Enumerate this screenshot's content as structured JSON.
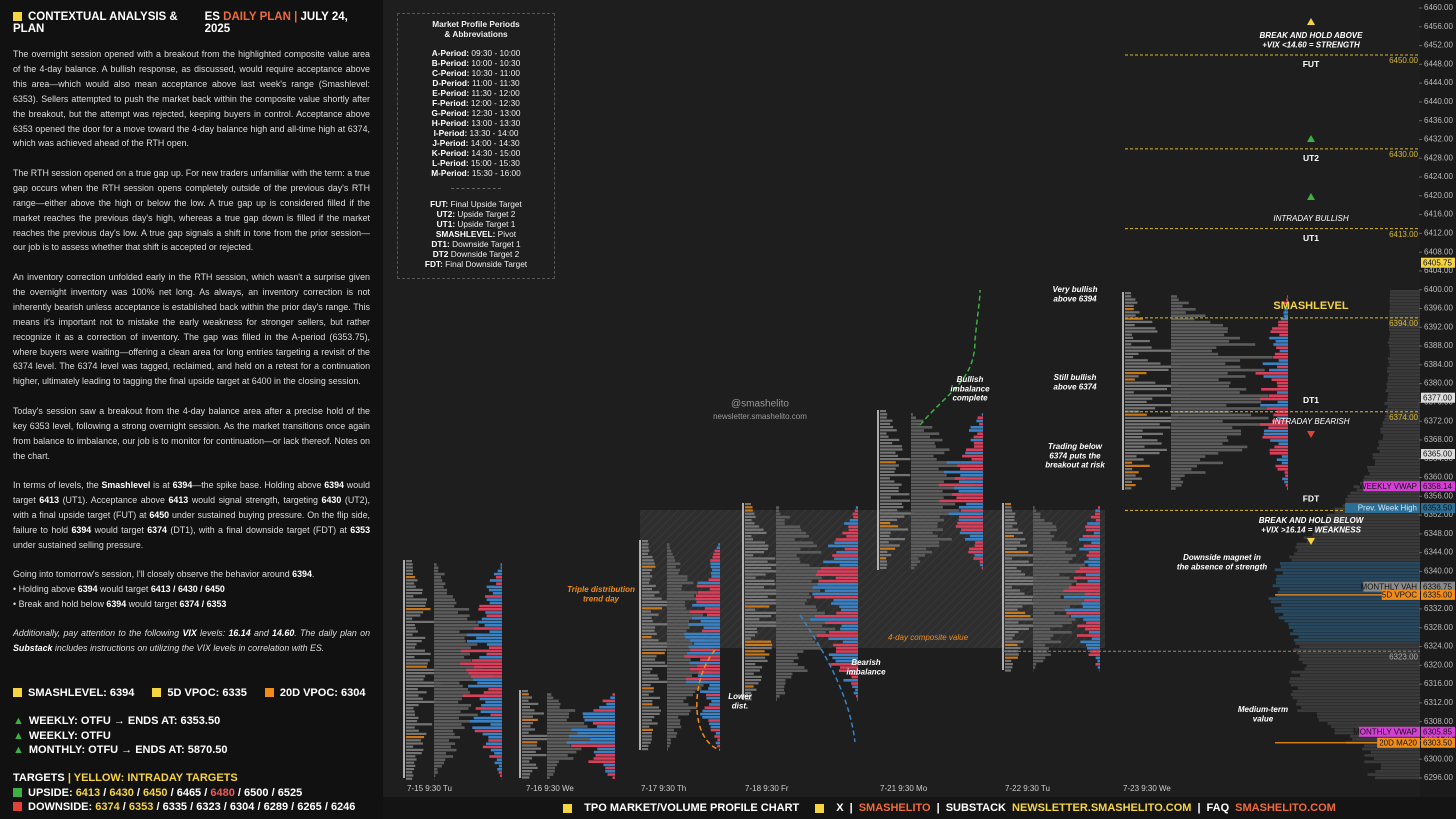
{
  "left_panel": {
    "header": {
      "title": "CONTEXTUAL ANALYSIS & PLAN",
      "instrument": "ES",
      "plan": "DAILY PLAN",
      "sep": "|",
      "date": "JULY 24, 2025"
    },
    "paragraphs": [
      [
        "The overnight session opened with a breakout from the highlighted composite value area of the 4-day balance. A bullish response, as discussed, would require acceptance above this area—which would also mean acceptance above last week's range (Smashlevel: 6353). Sellers attempted to push the market back within the composite value shortly after the breakout, but the attempt was rejected, keeping buyers in control. Acceptance above 6353 opened the door for a move toward the 4-day balance high and all-time high at 6374, which was achieved ahead of the RTH open."
      ],
      [
        "The RTH session opened on a true gap up. For new traders unfamiliar with the term: a true gap occurs when the RTH session opens completely outside of the previous day's RTH range—either above the high or below the low. A true gap up is considered filled if the market reaches the previous day's high, whereas a true gap down is filled if the market reaches the previous day's low. A true gap signals a shift in tone from the prior session—our job is to assess whether that shift is accepted or rejected."
      ],
      [
        "An inventory correction unfolded early in the RTH session, which wasn't a surprise given the overnight inventory was 100% net long. As always, an inventory correction is not inherently bearish unless acceptance is established back within the prior day's range. This means it's important not to mistake the early weakness for stronger sellers, but rather recognize it as a correction of inventory. The gap was filled in the A-period (6353.75), where buyers were waiting—offering a clean area for long entries targeting a revisit of the 6374 level. The 6374 level was tagged, reclaimed, and held on a retest for a continuation higher, ultimately leading to tagging the final upside target at 6400 in the closing session."
      ],
      [
        "Today's session saw a breakout from the 4-day balance area after a precise hold of the key 6353 level, following a strong overnight session. As the market transitions once again from balance to imbalance, our job is to monitor for continuation—or lack thereof. Notes on the chart."
      ],
      [
        "In terms of levels, the ",
        {
          "bold": "Smashlevel"
        },
        " is at ",
        {
          "bold": "6394"
        },
        "—the spike base. Holding above ",
        {
          "bold": "6394"
        },
        " would target ",
        {
          "bold": "6413"
        },
        " (UT1). Acceptance above ",
        {
          "bold": "6413"
        },
        " would signal strength, targeting ",
        {
          "bold": "6430"
        },
        " (UT2), with a final upside target (FUT) at ",
        {
          "bold": "6450"
        },
        " under sustained buying pressure. On the flip side, failure to hold ",
        {
          "bold": "6394"
        },
        " would target ",
        {
          "bold": "6374"
        },
        " (DT1), with a final downside target (FDT) at ",
        {
          "bold": "6353"
        },
        " under sustained selling pressure."
      ],
      [
        "Going into tomorrow's session, I'll closely observe the behavior around ",
        {
          "bold": "6394"
        },
        "."
      ]
    ],
    "bullets": [
      [
        "• Holding above ",
        {
          "bold": "6394"
        },
        " would target ",
        {
          "bold": "6413 / 6430 / 6450"
        }
      ],
      [
        "• Break and hold below ",
        {
          "bold": "6394"
        },
        " would target ",
        {
          "bold": "6374 / 6353"
        }
      ]
    ],
    "note": [
      "Additionally, pay attention to the following ",
      {
        "bold": "VIX"
      },
      " levels: ",
      {
        "bold": "16.14"
      },
      " and ",
      {
        "bold": "14.60"
      },
      ". The daily plan on ",
      {
        "bold": "Substack"
      },
      " includes instructions on utilizing the VIX levels in correlation with ES."
    ],
    "key_levels": [
      "SMASHLEVEL: 6394",
      "5D VPOC: 6335",
      "20D VPOC: 6304"
    ],
    "trend": [
      "WEEKLY: OTFU → ENDS AT: 6353.50",
      "WEEKLY: OTFU",
      "MONTHLY: OTFU → ENDS AT: 5870.50"
    ],
    "targets": {
      "title": "TARGETS",
      "sep": "|",
      "subtitle": "YELLOW: INTRADAY TARGETS",
      "slash": "/",
      "upside_label": "UPSIDE:",
      "upside": [
        {
          "text": "6413",
          "intraday": true
        },
        {
          "text": "6430",
          "intraday": true
        },
        {
          "text": "6450",
          "intraday": true
        },
        {
          "text": "6465"
        },
        {
          "text": "6480",
          "red": true
        },
        {
          "text": "6500"
        },
        {
          "text": "6525"
        }
      ],
      "downside_label": "DOWNSIDE:",
      "downside": [
        {
          "text": "6374",
          "intraday": true
        },
        {
          "text": "6353",
          "intraday": true
        },
        {
          "text": "6335"
        },
        {
          "text": "6323"
        },
        {
          "text": "6304"
        },
        {
          "text": "6289"
        },
        {
          "text": "6265"
        },
        {
          "text": "6246"
        }
      ]
    }
  },
  "legend_box": {
    "title": [
      "Market Profile Periods",
      "& Abbreviations"
    ],
    "periods": [
      [
        "A-Period:",
        "09:30 - 10:00"
      ],
      [
        "B-Period:",
        "10:00 - 10:30"
      ],
      [
        "C-Period:",
        "10:30 - 11:00"
      ],
      [
        "D-Period:",
        "11:00 - 11:30"
      ],
      [
        "E-Period:",
        "11:30 - 12:00"
      ],
      [
        "F-Period:",
        "12:00 - 12:30"
      ],
      [
        "G-Period:",
        "12:30 - 13:00"
      ],
      [
        "H-Period:",
        "13:00 - 13:30"
      ],
      [
        "I-Period:",
        "13:30 - 14:00"
      ],
      [
        "J-Period:",
        "14:00 - 14:30"
      ],
      [
        "K-Period:",
        "14:30 - 15:00"
      ],
      [
        "L-Period:",
        "15:00 - 15:30"
      ],
      [
        "M-Period:",
        "15:30 - 16:00"
      ]
    ],
    "abbreviations": [
      [
        "FUT:",
        "Final Upside Target"
      ],
      [
        "UT2:",
        "Upside Target 2"
      ],
      [
        "UT1:",
        "Upside Target 1"
      ],
      [
        "SMASHLEVEL:",
        "Pivot"
      ],
      [
        "DT1:",
        "Downside Target 1"
      ],
      [
        "DT2",
        "Downside Target 2"
      ],
      [
        "FDT:",
        "Final Downside Target"
      ]
    ]
  },
  "footer": {
    "sep": "|",
    "groups": [
      [
        "TPO MARKET/VOLUME PROFILE CHART"
      ],
      [
        "X",
        {
          "red": "SMASHELITO"
        }
      ],
      [
        "SUBSTACK",
        {
          "yellow": "NEWSLETTER.SMASHELITO.COM"
        }
      ],
      [
        "FAQ",
        {
          "red": "SMASHELITO.COM"
        }
      ]
    ]
  },
  "chart_data": {
    "type": "tpo",
    "ylim": [
      6296,
      6460
    ],
    "yticks": [
      {
        "value": 6296,
        "label": "6296.00"
      },
      {
        "value": 6300,
        "label": "6300.00"
      },
      {
        "value": 6304,
        "label": "6304.00"
      },
      {
        "value": 6308,
        "label": "6308.00"
      },
      {
        "value": 6312,
        "label": "6312.00"
      },
      {
        "value": 6316,
        "label": "6316.00"
      },
      {
        "value": 6320,
        "label": "6320.00"
      },
      {
        "value": 6324,
        "label": "6324.00"
      },
      {
        "value": 6328,
        "label": "6328.00"
      },
      {
        "value": 6332,
        "label": "6332.00"
      },
      {
        "value": 6336,
        "label": "6336.00"
      },
      {
        "value": 6340,
        "label": "6340.00"
      },
      {
        "value": 6344,
        "label": "6344.00"
      },
      {
        "value": 6348,
        "label": "6348.00"
      },
      {
        "value": 6352,
        "label": "6352.00"
      },
      {
        "value": 6356,
        "label": "6356.00"
      },
      {
        "value": 6360,
        "label": "6360.00"
      },
      {
        "value": 6364,
        "label": "6364.00"
      },
      {
        "value": 6368,
        "label": "6368.00"
      },
      {
        "value": 6372,
        "label": "6372.00"
      },
      {
        "value": 6376,
        "label": "6376.00"
      },
      {
        "value": 6380,
        "label": "6380.00"
      },
      {
        "value": 6384,
        "label": "6384.00"
      },
      {
        "value": 6388,
        "label": "6388.00"
      },
      {
        "value": 6392,
        "label": "6392.00"
      },
      {
        "value": 6396,
        "label": "6396.00"
      },
      {
        "value": 6400,
        "label": "6400.00"
      },
      {
        "value": 6404,
        "label": "6404.00"
      },
      {
        "value": 6408,
        "label": "6408.00"
      },
      {
        "value": 6412,
        "label": "6412.00"
      },
      {
        "value": 6416,
        "label": "6416.00"
      },
      {
        "value": 6420,
        "label": "6420.00"
      },
      {
        "value": 6424,
        "label": "6424.00"
      },
      {
        "value": 6428,
        "label": "6428.00"
      },
      {
        "value": 6432,
        "label": "6432.00"
      },
      {
        "value": 6436,
        "label": "6436.00"
      },
      {
        "value": 6440,
        "label": "6440.00"
      },
      {
        "value": 6444,
        "label": "6444.00"
      },
      {
        "value": 6448,
        "label": "6448.00"
      },
      {
        "value": 6452,
        "label": "6452.00"
      },
      {
        "value": 6456,
        "label": "6456.00"
      },
      {
        "value": 6460,
        "label": "6460.00"
      }
    ],
    "x_labels": [
      "7-15  9:30 Tu",
      "7-16  9:30 We",
      "7-17  9:30 Th",
      "7-18  9:30 Fr",
      "7-21  9:30 Mo",
      "7-22  9:30 Tu",
      "7-23  9:30 We"
    ],
    "levels": [
      {
        "name": "FUT",
        "price": 6450,
        "label": "6450.00"
      },
      {
        "name": "UT2",
        "price": 6430,
        "label": "6430.00"
      },
      {
        "name": "UT1",
        "price": 6413,
        "label": "6413.00"
      },
      {
        "name": "SMASHLEVEL",
        "price": 6394,
        "label": "6394.00"
      },
      {
        "name": "DT1",
        "price": 6374,
        "label": "6374.00"
      },
      {
        "name": "FDT",
        "price": 6353
      },
      {
        "price": 6323,
        "label": "6323.00"
      }
    ],
    "tags": [
      {
        "price": 6405.75,
        "label": "6405.75",
        "color": "#f5d442"
      },
      {
        "price": 6377,
        "label": "6377.00",
        "color": "#dddddd"
      },
      {
        "price": 6365,
        "label": "6365.00",
        "color": "#dddddd"
      },
      {
        "price": 6358.14,
        "label": "6358.14",
        "name": "WEEKLY VWAP",
        "color": "#d63fd6"
      },
      {
        "price": 6353.5,
        "label": "6353.50",
        "name": "Prev. Week High",
        "color": "#2d6e94"
      },
      {
        "price": 6336.75,
        "label": "6336.75",
        "name": "MONTHLY VAH",
        "color": "#8a8a8a"
      },
      {
        "price": 6335,
        "label": "6335.00",
        "name": "5D VPOC",
        "color": "#f08c1a"
      },
      {
        "price": 6305.85,
        "label": "6305.85",
        "name": "MONTHLY VWAP",
        "color": "#d63fd6"
      },
      {
        "price": 6303.5,
        "label": "6303.50",
        "name": "20D MA20",
        "color": "#f08c1a"
      }
    ],
    "annotations": [
      {
        "lines": [
          "BREAK AND HOLD ABOVE",
          "+VIX <14.60 = STRENGTH"
        ]
      },
      {
        "lines": [
          "INTRADAY BULLISH"
        ]
      },
      {
        "lines": [
          "INTRADAY BEARISH"
        ]
      },
      {
        "lines": [
          "BREAK AND HOLD BELOW",
          "+VIX >16.14 = WEAKNESS"
        ]
      },
      {
        "lines": [
          "Downside magnet in",
          "the absence of strength"
        ]
      },
      {
        "lines": [
          "Medium-term",
          "value"
        ]
      },
      {
        "lines": [
          "Very bullish",
          "above 6394"
        ]
      },
      {
        "lines": [
          "Still bullish",
          "above 6374"
        ]
      },
      {
        "lines": [
          "Trading below",
          "6374 puts the",
          "breakout at risk"
        ]
      },
      {
        "lines": [
          "Bullish",
          "imbalance",
          "complete"
        ]
      },
      {
        "lines": [
          "Triple distribution",
          "trend day"
        ],
        "color": "#f08c1a"
      },
      {
        "lines": [
          "4-day composite value"
        ],
        "color": "#f08c1a"
      },
      {
        "lines": [
          "Bearish",
          "imbalance"
        ]
      },
      {
        "lines": [
          "Lower",
          "dist."
        ]
      },
      {
        "lines": [
          "@smashelito"
        ]
      },
      {
        "lines": [
          "newsletter.smashelito.com"
        ]
      }
    ]
  }
}
